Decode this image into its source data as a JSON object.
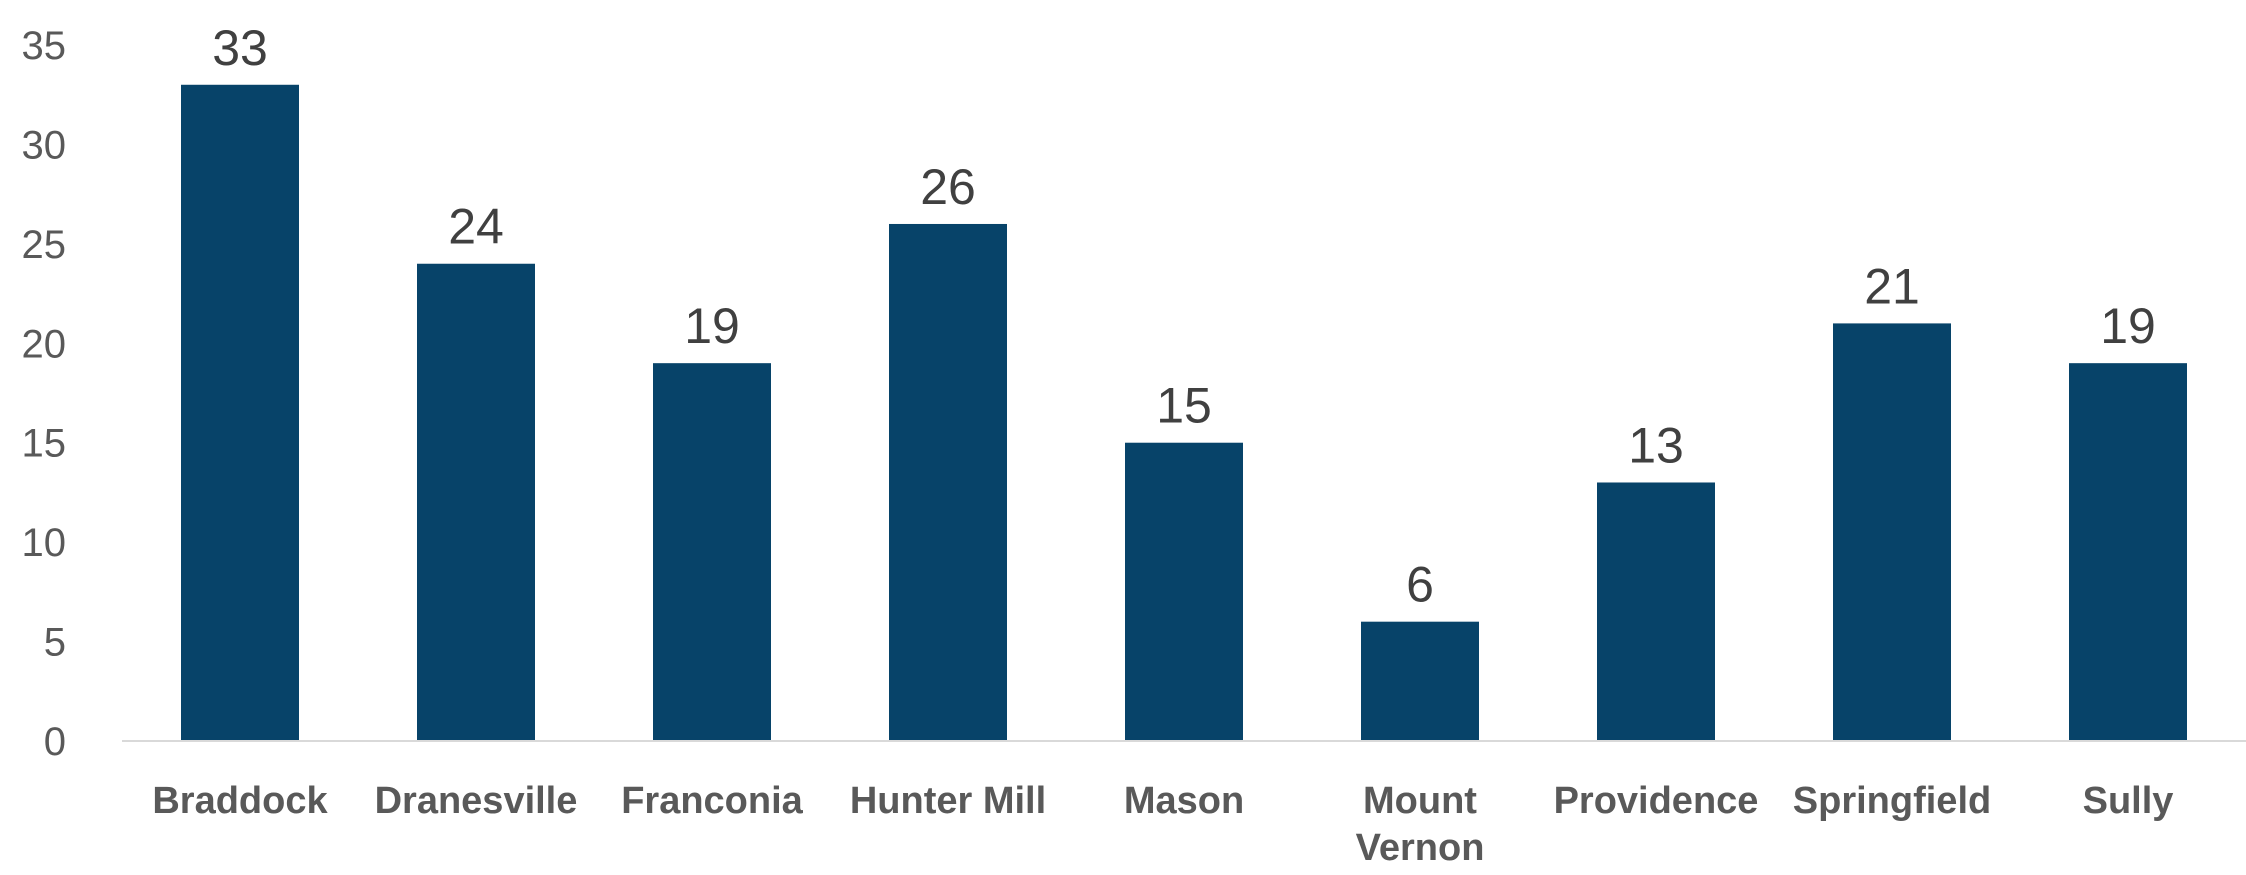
{
  "chart_data": {
    "type": "bar",
    "title": "",
    "xlabel": "",
    "ylabel": "",
    "categories": [
      "Braddock",
      "Dranesville",
      "Franconia",
      "Hunter Mill",
      "Mason",
      "Mount Vernon",
      "Providence",
      "Springfield",
      "Sully"
    ],
    "values": [
      33,
      24,
      19,
      26,
      15,
      6,
      13,
      21,
      19
    ],
    "data_labels": [
      "33",
      "24",
      "19",
      "26",
      "15",
      "6",
      "13",
      "21",
      "19"
    ],
    "ylim": [
      0,
      35
    ],
    "yticks": [
      0,
      5,
      10,
      15,
      20,
      25,
      30,
      35
    ],
    "grid": false,
    "legend": "none",
    "bar_color": "#074369",
    "axis_color": "#d9d9d9"
  }
}
